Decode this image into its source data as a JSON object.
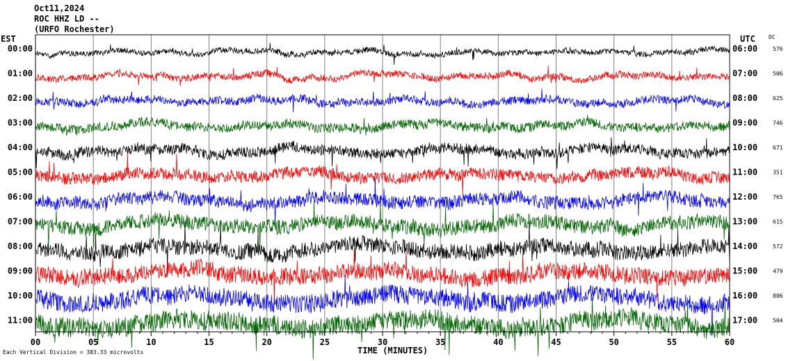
{
  "header": {
    "date": "Oct11,2024",
    "station": "ROC HHZ LD --",
    "location": "(URFO Rochester)"
  },
  "left_axis_label": "EST",
  "right_axis_label": "UTC",
  "dc_label": "DC",
  "footer": {
    "note": "Each Vertical Division = 383.33 microvolts",
    "x_axis_title": "TIME (MINUTES)"
  },
  "colors": {
    "black": "#000000",
    "red": "#ff0000",
    "blue": "#0000ff",
    "green": "#006400"
  },
  "chart_data": {
    "type": "line",
    "title": "Oct11,2024 ROC HHZ LD -- (URFO Rochester)",
    "xlabel": "TIME (MINUTES)",
    "ylabel": "EST",
    "x_ticks": [
      "00",
      "05",
      "10",
      "15",
      "20",
      "25",
      "30",
      "35",
      "40",
      "45",
      "50",
      "55",
      "60"
    ],
    "xlim": [
      0,
      60
    ],
    "traces": [
      {
        "est": "00:00",
        "utc": "06:00",
        "dc": "576",
        "color": "black"
      },
      {
        "est": "01:00",
        "utc": "07:00",
        "dc": "506",
        "color": "red"
      },
      {
        "est": "02:00",
        "utc": "08:00",
        "dc": "625",
        "color": "blue"
      },
      {
        "est": "03:00",
        "utc": "09:00",
        "dc": "746",
        "color": "green"
      },
      {
        "est": "04:00",
        "utc": "10:00",
        "dc": "671",
        "color": "black"
      },
      {
        "est": "05:00",
        "utc": "11:00",
        "dc": "351",
        "color": "red"
      },
      {
        "est": "06:00",
        "utc": "12:00",
        "dc": "765",
        "color": "blue"
      },
      {
        "est": "07:00",
        "utc": "13:00",
        "dc": "615",
        "color": "green"
      },
      {
        "est": "08:00",
        "utc": "14:00",
        "dc": "572",
        "color": "black"
      },
      {
        "est": "09:00",
        "utc": "15:00",
        "dc": "479",
        "color": "red"
      },
      {
        "est": "10:00",
        "utc": "16:00",
        "dc": "806",
        "color": "blue"
      },
      {
        "est": "11:00",
        "utc": "17:00",
        "dc": "504",
        "color": "green"
      }
    ],
    "grid": true
  }
}
